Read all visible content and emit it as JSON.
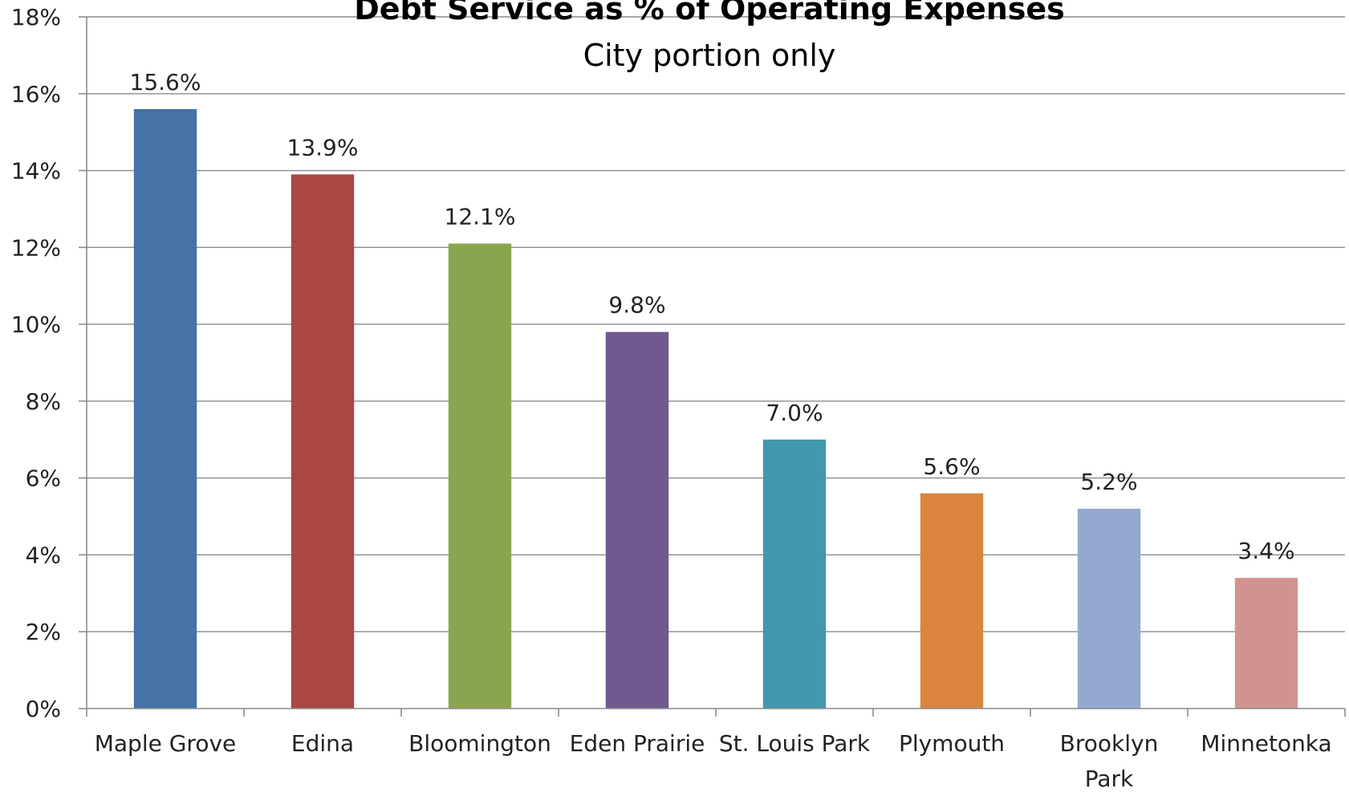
{
  "chart_data": {
    "type": "bar",
    "title": "Debt Service as % of Operating Expenses",
    "subtitle": "City portion only",
    "categories": [
      "Maple Grove",
      "Edina",
      "Bloomington",
      "Eden Prairie",
      "St. Louis Park",
      "Plymouth",
      "Brooklyn Park",
      "Minnetonka"
    ],
    "values": [
      15.6,
      13.9,
      12.1,
      9.8,
      7.0,
      5.6,
      5.2,
      3.4
    ],
    "data_labels": [
      "15.6%",
      "13.9%",
      "12.1%",
      "9.8%",
      "7.0%",
      "5.6%",
      "5.2%",
      "3.4%"
    ],
    "ylim": [
      0,
      18
    ],
    "yticks": [
      0,
      2,
      4,
      6,
      8,
      10,
      12,
      14,
      16,
      18
    ],
    "ytick_labels": [
      "0%",
      "2%",
      "4%",
      "6%",
      "8%",
      "10%",
      "12%",
      "14%",
      "16%",
      "18%"
    ],
    "xlabel": "",
    "ylabel": "",
    "grid": true,
    "legend": "none",
    "colors": [
      "#4572a7",
      "#aa4643",
      "#89a54e",
      "#71588f",
      "#4198af",
      "#db843d",
      "#93a9cf",
      "#d19392"
    ]
  }
}
